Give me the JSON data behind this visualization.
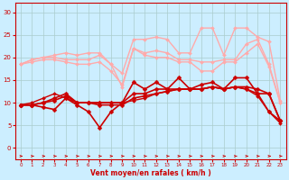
{
  "xlabel": "Vent moyen/en rafales ( km/h )",
  "xlabel_color": "#cc0000",
  "bg_color": "#cceeff",
  "grid_color": "#aacccc",
  "x_ticks": [
    0,
    1,
    2,
    3,
    4,
    5,
    6,
    7,
    8,
    9,
    10,
    11,
    12,
    13,
    14,
    15,
    16,
    17,
    18,
    19,
    20,
    21,
    22,
    23
  ],
  "y_ticks": [
    0,
    5,
    10,
    15,
    20,
    25,
    30
  ],
  "ylim": [
    -2.5,
    32
  ],
  "xlim": [
    -0.5,
    23.5
  ],
  "series": [
    {
      "color": "#ffaaaa",
      "lw": 1.0,
      "marker": "D",
      "markersize": 2.0,
      "x": [
        0,
        1,
        2,
        3,
        4,
        5,
        6,
        7,
        8,
        9,
        10,
        11,
        12,
        13,
        14,
        15,
        16,
        17,
        18,
        19,
        20,
        21,
        22,
        23
      ],
      "y": [
        18.5,
        19.5,
        20,
        20,
        19.5,
        19.5,
        19.5,
        20.5,
        18.5,
        16.5,
        24,
        24,
        24.5,
        24,
        21,
        21,
        26.5,
        26.5,
        20.5,
        26.5,
        26.5,
        24.5,
        23.5,
        10.5
      ]
    },
    {
      "color": "#ffaaaa",
      "lw": 1.0,
      "marker": "D",
      "markersize": 2.0,
      "x": [
        0,
        1,
        2,
        3,
        4,
        5,
        6,
        7,
        8,
        9,
        10,
        11,
        12,
        13,
        14,
        15,
        16,
        17,
        18,
        19,
        20,
        21,
        22,
        23
      ],
      "y": [
        18.5,
        19.5,
        20,
        20.5,
        21,
        20.5,
        21,
        21,
        18.5,
        13.5,
        22,
        21,
        21.5,
        21,
        19.5,
        19.5,
        19,
        19,
        19.5,
        19.5,
        23,
        24,
        18.5,
        10
      ]
    },
    {
      "color": "#ffaaaa",
      "lw": 1.0,
      "marker": "D",
      "markersize": 2.0,
      "x": [
        0,
        1,
        2,
        3,
        4,
        5,
        6,
        7,
        8,
        9,
        10,
        11,
        12,
        13,
        14,
        15,
        16,
        17,
        18,
        19,
        20,
        21,
        22,
        23
      ],
      "y": [
        18.5,
        19,
        19.5,
        19.5,
        19,
        18.5,
        18.5,
        19,
        17,
        14,
        22,
        20.5,
        20,
        20,
        19,
        19,
        17,
        17,
        19,
        19,
        21,
        23,
        18,
        10
      ]
    },
    {
      "color": "#cc0000",
      "lw": 1.2,
      "marker": "D",
      "markersize": 2.5,
      "x": [
        0,
        1,
        2,
        3,
        4,
        5,
        6,
        7,
        8,
        9,
        10,
        11,
        12,
        13,
        14,
        15,
        16,
        17,
        18,
        19,
        20,
        21,
        22,
        23
      ],
      "y": [
        9.5,
        9.5,
        9,
        8.5,
        11,
        9.5,
        8,
        4.5,
        8,
        10,
        14.5,
        13,
        14.5,
        13,
        15.5,
        13,
        14,
        14.5,
        13,
        15.5,
        15.5,
        12,
        8,
        6
      ]
    },
    {
      "color": "#cc0000",
      "lw": 1.2,
      "marker": "D",
      "markersize": 2.5,
      "x": [
        0,
        1,
        2,
        3,
        4,
        5,
        6,
        7,
        8,
        9,
        10,
        11,
        12,
        13,
        14,
        15,
        16,
        17,
        18,
        19,
        20,
        21,
        22,
        23
      ],
      "y": [
        9.5,
        9.5,
        10,
        11,
        12,
        10,
        10,
        10,
        10,
        10,
        12,
        12,
        13,
        13,
        13,
        13,
        13,
        13.5,
        13,
        13.5,
        13.5,
        13,
        12,
        6
      ]
    },
    {
      "color": "#cc0000",
      "lw": 1.2,
      "marker": "D",
      "markersize": 2.5,
      "x": [
        0,
        1,
        2,
        3,
        4,
        5,
        6,
        7,
        8,
        9,
        10,
        11,
        12,
        13,
        14,
        15,
        16,
        17,
        18,
        19,
        20,
        21,
        22,
        23
      ],
      "y": [
        9.5,
        9.5,
        10,
        10.5,
        11.5,
        10,
        10,
        9.5,
        9.5,
        9.5,
        11,
        11.5,
        12,
        12.5,
        13,
        13,
        13,
        13.5,
        13,
        13.5,
        13,
        12,
        12,
        6
      ]
    },
    {
      "color": "#cc0000",
      "lw": 1.0,
      "marker": "D",
      "markersize": 2.0,
      "x": [
        0,
        1,
        2,
        3,
        4,
        5,
        6,
        7,
        8,
        9,
        10,
        11,
        12,
        13,
        14,
        15,
        16,
        17,
        18,
        19,
        20,
        21,
        22,
        23
      ],
      "y": [
        9.5,
        10,
        11,
        12,
        11,
        10,
        10,
        10,
        10,
        10,
        10.5,
        11,
        12,
        12.5,
        13,
        13,
        13,
        13.5,
        13,
        13.5,
        13,
        11.5,
        8,
        5.5
      ]
    }
  ],
  "arrow_color": "#cc0000"
}
